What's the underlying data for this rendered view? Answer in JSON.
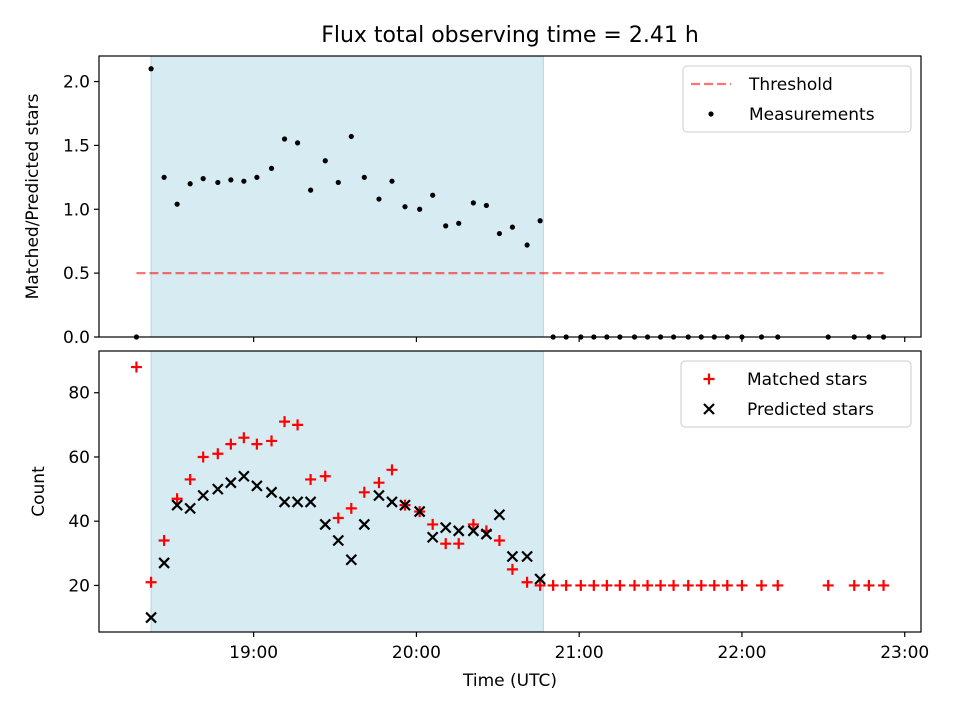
{
  "figure_title": "Flux total observing time = 2.41 h",
  "colors": {
    "shade": "#add8e6",
    "threshold": "#ff0000",
    "measurements": "#000000",
    "matched": "#ff0000",
    "predicted": "#000000"
  },
  "chart_data": [
    {
      "type": "scatter",
      "title": "Flux total observing time = 2.41 h",
      "xlabel": "",
      "ylabel": "Matched/Predicted stars",
      "xlim": [
        18.05,
        23.1
      ],
      "ylim": [
        0,
        2.2
      ],
      "yticks": [
        0.0,
        0.5,
        1.0,
        1.5,
        2.0
      ],
      "yticklabels": [
        "0.0",
        "0.5",
        "1.0",
        "1.5",
        "2.0"
      ],
      "shaded_span": [
        18.37,
        20.78
      ],
      "threshold_line": {
        "y": 0.5,
        "x": [
          18.28,
          22.87
        ],
        "label": "Threshold"
      },
      "legend_position": "upper right",
      "legend": [
        "Threshold",
        "Measurements"
      ],
      "series": [
        {
          "name": "Measurements",
          "marker": "dot",
          "x": [
            18.28,
            18.37,
            18.45,
            18.53,
            18.61,
            18.69,
            18.78,
            18.86,
            18.94,
            19.02,
            19.11,
            19.19,
            19.27,
            19.35,
            19.44,
            19.52,
            19.6,
            19.68,
            19.77,
            19.85,
            19.93,
            20.02,
            20.1,
            20.18,
            20.26,
            20.35,
            20.43,
            20.51,
            20.59,
            20.68,
            20.76,
            20.84,
            20.92,
            21.01,
            21.09,
            21.17,
            21.25,
            21.34,
            21.42,
            21.5,
            21.58,
            21.67,
            21.75,
            21.83,
            21.91,
            22.0,
            22.12,
            22.22,
            22.53,
            22.69,
            22.78,
            22.87
          ],
          "y": [
            0.0,
            2.1,
            1.25,
            1.04,
            1.2,
            1.24,
            1.21,
            1.23,
            1.22,
            1.25,
            1.32,
            1.55,
            1.52,
            1.15,
            1.38,
            1.21,
            1.57,
            1.25,
            1.08,
            1.22,
            1.02,
            1.0,
            1.11,
            0.87,
            0.89,
            1.05,
            1.03,
            0.81,
            0.86,
            0.72,
            0.91,
            0.0,
            0.0,
            0.0,
            0.0,
            0.0,
            0.0,
            0.0,
            0.0,
            0.0,
            0.0,
            0.0,
            0.0,
            0.0,
            0.0,
            0.0,
            0.0,
            0.0,
            0.0,
            0.0,
            0.0,
            0.0
          ]
        }
      ]
    },
    {
      "type": "scatter",
      "title": "",
      "xlabel": "Time (UTC)",
      "ylabel": "Count",
      "xlim": [
        18.05,
        23.1
      ],
      "ylim": [
        5.5,
        93
      ],
      "xticks": [
        19,
        20,
        21,
        22,
        23
      ],
      "xticklabels": [
        "19:00",
        "20:00",
        "21:00",
        "22:00",
        "23:00"
      ],
      "yticks": [
        20,
        40,
        60,
        80
      ],
      "yticklabels": [
        "20",
        "40",
        "60",
        "80"
      ],
      "shaded_span": [
        18.37,
        20.78
      ],
      "legend_position": "upper right",
      "legend": [
        "Matched stars",
        "Predicted stars"
      ],
      "series": [
        {
          "name": "Matched stars",
          "marker": "plus",
          "x": [
            18.28,
            18.37,
            18.45,
            18.53,
            18.61,
            18.69,
            18.78,
            18.86,
            18.94,
            19.02,
            19.11,
            19.19,
            19.27,
            19.35,
            19.44,
            19.52,
            19.6,
            19.68,
            19.77,
            19.85,
            19.93,
            20.02,
            20.1,
            20.18,
            20.26,
            20.35,
            20.43,
            20.51,
            20.59,
            20.68,
            20.76,
            20.84,
            20.92,
            21.01,
            21.09,
            21.17,
            21.25,
            21.34,
            21.42,
            21.5,
            21.58,
            21.67,
            21.75,
            21.83,
            21.91,
            22.0,
            22.12,
            22.22,
            22.53,
            22.69,
            22.78,
            22.87
          ],
          "y": [
            88,
            21,
            34,
            47,
            53,
            60,
            61,
            64,
            66,
            64,
            65,
            71,
            70,
            53,
            54,
            41,
            44,
            49,
            52,
            56,
            45,
            43,
            39,
            33,
            33,
            39,
            37,
            34,
            25,
            21,
            20,
            20,
            20,
            20,
            20,
            20,
            20,
            20,
            20,
            20,
            20,
            20,
            20,
            20,
            20,
            20,
            20,
            20,
            20,
            20,
            20,
            20
          ]
        },
        {
          "name": "Predicted stars",
          "marker": "x",
          "x": [
            18.37,
            18.45,
            18.53,
            18.61,
            18.69,
            18.78,
            18.86,
            18.94,
            19.02,
            19.11,
            19.19,
            19.27,
            19.35,
            19.44,
            19.52,
            19.6,
            19.68,
            19.77,
            19.85,
            19.93,
            20.02,
            20.1,
            20.18,
            20.26,
            20.35,
            20.43,
            20.51,
            20.59,
            20.68,
            20.76
          ],
          "y": [
            10,
            27,
            45,
            44,
            48,
            50,
            52,
            54,
            51,
            49,
            46,
            46,
            46,
            39,
            34,
            28,
            39,
            48,
            46,
            45,
            43,
            35,
            38,
            37,
            37,
            36,
            42,
            29,
            29,
            22
          ]
        }
      ]
    }
  ]
}
